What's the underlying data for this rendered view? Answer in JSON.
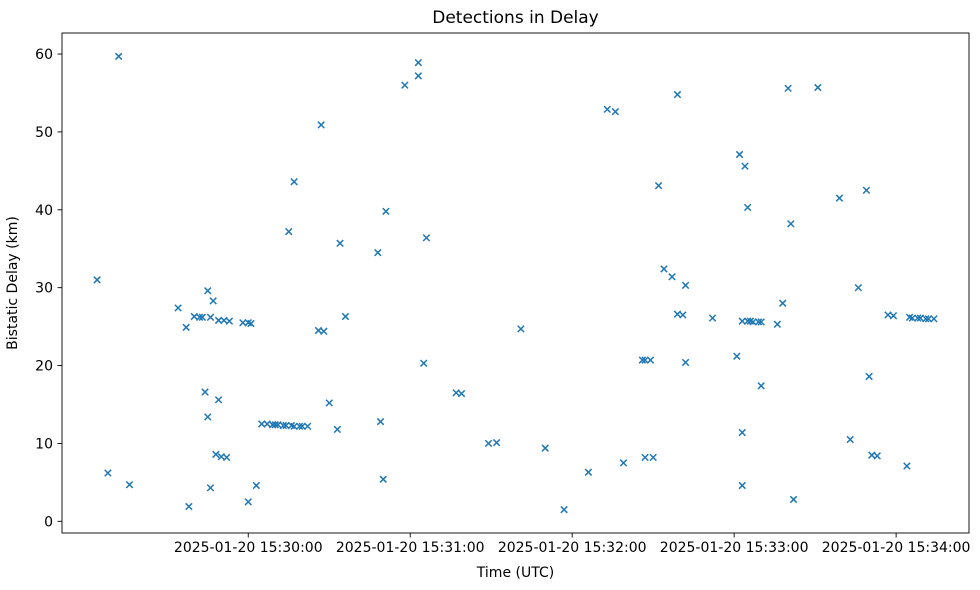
{
  "chart_data": {
    "type": "scatter",
    "title": "Detections in Delay",
    "xlabel": "Time (UTC)",
    "ylabel": "Bistatic Delay (km)",
    "marker": "x",
    "marker_color": "#1f77b4",
    "background_color": "#ffffff",
    "legend": "none",
    "grid": false,
    "x_axis": {
      "unit": "seconds relative to 2025-01-20 15:30:00 UTC",
      "min": -69,
      "max": 267,
      "ticks": [
        {
          "t": 0,
          "label": "2025-01-20 15:30:00"
        },
        {
          "t": 60,
          "label": "2025-01-20 15:31:00"
        },
        {
          "t": 120,
          "label": "2025-01-20 15:32:00"
        },
        {
          "t": 180,
          "label": "2025-01-20 15:33:00"
        },
        {
          "t": 240,
          "label": "2025-01-20 15:34:00"
        }
      ]
    },
    "y_axis": {
      "min": -1.5,
      "max": 62.7,
      "ticks": [
        0,
        10,
        20,
        30,
        40,
        50,
        60
      ]
    },
    "points": [
      [
        -56,
        31.0
      ],
      [
        -52,
        6.2
      ],
      [
        -48,
        59.7
      ],
      [
        -44,
        4.7
      ],
      [
        -26,
        27.4
      ],
      [
        -23,
        24.9
      ],
      [
        -22,
        1.9
      ],
      [
        -20,
        26.3
      ],
      [
        -18,
        26.2
      ],
      [
        -17,
        26.2
      ],
      [
        -16,
        16.6
      ],
      [
        -15,
        29.6
      ],
      [
        -15,
        13.4
      ],
      [
        -14,
        26.2
      ],
      [
        -14,
        4.3
      ],
      [
        -13,
        28.3
      ],
      [
        -12,
        8.6
      ],
      [
        -11,
        25.8
      ],
      [
        -11,
        15.6
      ],
      [
        -10,
        8.3
      ],
      [
        -9,
        25.8
      ],
      [
        -8,
        8.2
      ],
      [
        -7,
        25.7
      ],
      [
        -2,
        25.5
      ],
      [
        0,
        25.5
      ],
      [
        0,
        2.5
      ],
      [
        1,
        25.4
      ],
      [
        3,
        4.6
      ],
      [
        5,
        12.5
      ],
      [
        7,
        12.5
      ],
      [
        9,
        12.4
      ],
      [
        10,
        12.4
      ],
      [
        11,
        12.4
      ],
      [
        13,
        12.3
      ],
      [
        14,
        12.3
      ],
      [
        15,
        37.2
      ],
      [
        16,
        12.3
      ],
      [
        17,
        43.6
      ],
      [
        17,
        12.2
      ],
      [
        19,
        12.2
      ],
      [
        20,
        12.2
      ],
      [
        22,
        12.2
      ],
      [
        26,
        24.5
      ],
      [
        27,
        50.9
      ],
      [
        28,
        24.4
      ],
      [
        30,
        15.2
      ],
      [
        33,
        11.8
      ],
      [
        34,
        35.7
      ],
      [
        36,
        26.3
      ],
      [
        48,
        34.5
      ],
      [
        49,
        12.8
      ],
      [
        50,
        5.4
      ],
      [
        51,
        39.8
      ],
      [
        58,
        56.0
      ],
      [
        63,
        58.9
      ],
      [
        63,
        57.2
      ],
      [
        65,
        20.3
      ],
      [
        66,
        36.4
      ],
      [
        77,
        16.5
      ],
      [
        79,
        16.4
      ],
      [
        89,
        10.0
      ],
      [
        92,
        10.1
      ],
      [
        101,
        24.7
      ],
      [
        110,
        9.4
      ],
      [
        117,
        1.5
      ],
      [
        126,
        6.3
      ],
      [
        133,
        52.9
      ],
      [
        136,
        52.6
      ],
      [
        139,
        7.5
      ],
      [
        146,
        20.7
      ],
      [
        147,
        20.7
      ],
      [
        147,
        8.2
      ],
      [
        149,
        20.7
      ],
      [
        150,
        8.2
      ],
      [
        152,
        43.1
      ],
      [
        154,
        32.4
      ],
      [
        157,
        31.4
      ],
      [
        159,
        54.8
      ],
      [
        159,
        26.6
      ],
      [
        161,
        26.5
      ],
      [
        162,
        30.3
      ],
      [
        162,
        20.4
      ],
      [
        172,
        26.1
      ],
      [
        181,
        21.2
      ],
      [
        182,
        47.1
      ],
      [
        183,
        11.4
      ],
      [
        183,
        4.6
      ],
      [
        183,
        25.7
      ],
      [
        184,
        45.6
      ],
      [
        185,
        40.3
      ],
      [
        185,
        25.7
      ],
      [
        186,
        25.7
      ],
      [
        187,
        25.6
      ],
      [
        189,
        25.6
      ],
      [
        190,
        25.6
      ],
      [
        190,
        17.4
      ],
      [
        196,
        25.3
      ],
      [
        198,
        28.0
      ],
      [
        200,
        55.6
      ],
      [
        201,
        38.2
      ],
      [
        202,
        2.8
      ],
      [
        211,
        55.7
      ],
      [
        219,
        41.5
      ],
      [
        223,
        10.5
      ],
      [
        226,
        30.0
      ],
      [
        229,
        42.5
      ],
      [
        230,
        18.6
      ],
      [
        231,
        8.5
      ],
      [
        233,
        8.4
      ],
      [
        237,
        26.5
      ],
      [
        239,
        26.4
      ],
      [
        244,
        7.1
      ],
      [
        245,
        26.2
      ],
      [
        246,
        26.1
      ],
      [
        248,
        26.1
      ],
      [
        249,
        26.1
      ],
      [
        251,
        26.0
      ],
      [
        252,
        26.0
      ],
      [
        254,
        26.0
      ]
    ]
  }
}
